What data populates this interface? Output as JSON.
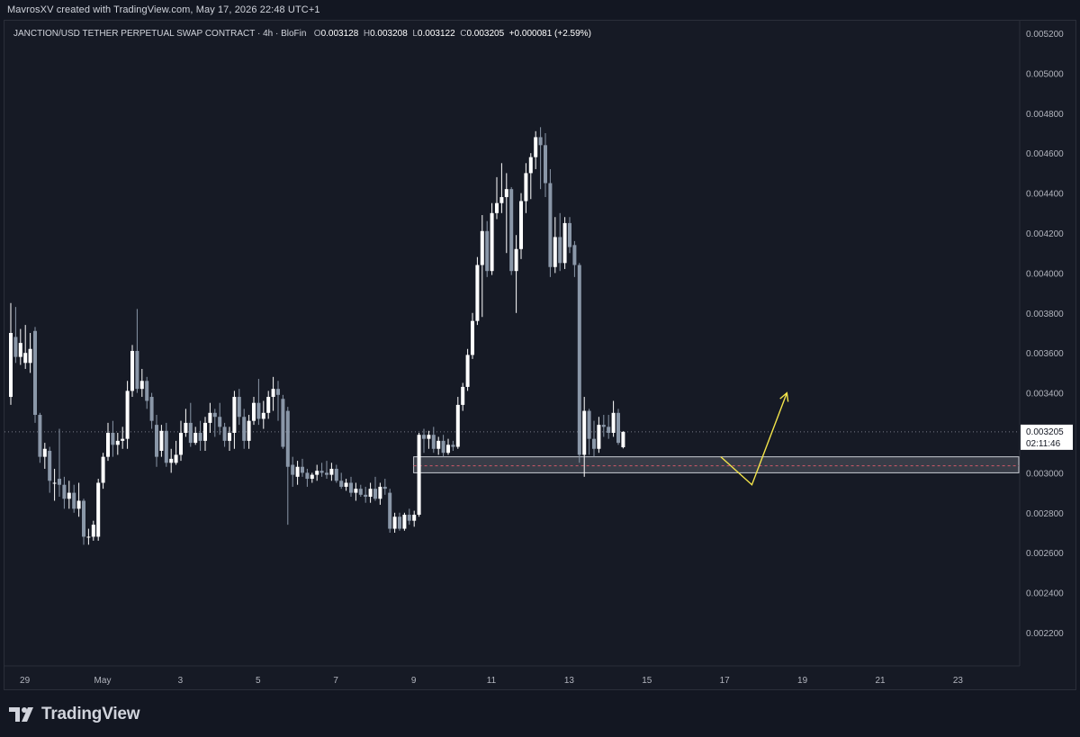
{
  "header": {
    "title": "MavrosXV created with TradingView.com, May 17, 2026 22:48 UTC+1"
  },
  "legend": {
    "symbol": "JANCTION/USD TETHER PERPETUAL SWAP CONTRACT · 4h · BloFin",
    "o_label": "O",
    "o_value": "0.003128",
    "h_label": "H",
    "h_value": "0.003208",
    "l_label": "L",
    "l_value": "0.003122",
    "c_label": "C",
    "c_value": "0.003205",
    "change": "+0.000081 (+2.59%)"
  },
  "footer": {
    "brand": "TradingView"
  },
  "colors": {
    "background": "#161a25",
    "up": "#ffffff",
    "down": "#8a97a8",
    "arrow": "#f3e44a",
    "zone": "#9598a1"
  },
  "chart_data": {
    "type": "candlestick",
    "timeframe": "4h",
    "x_tick_labels": [
      "29",
      "May",
      "3",
      "5",
      "7",
      "9",
      "11",
      "13",
      "15",
      "17",
      "19",
      "21",
      "23"
    ],
    "y_tick_labels": [
      "0.005200",
      "0.005000",
      "0.004800",
      "0.004600",
      "0.004400",
      "0.004200",
      "0.004000",
      "0.003800",
      "0.003600",
      "0.003400",
      "0.003200",
      "0.003000",
      "0.002800",
      "0.002600",
      "0.002400",
      "0.002200"
    ],
    "ylim": [
      0.00208,
      0.0053
    ],
    "last_price": {
      "value": "0.003205",
      "countdown": "02:11:46"
    },
    "zone": {
      "from": 0.003,
      "to": 0.00308,
      "mid": 0.003035,
      "start_day": 9.0
    },
    "candles": [
      {
        "o": 0.00338,
        "h": 0.00385,
        "l": 0.00334,
        "c": 0.0037
      },
      {
        "o": 0.00368,
        "h": 0.00383,
        "l": 0.00355,
        "c": 0.00358
      },
      {
        "o": 0.00358,
        "h": 0.00372,
        "l": 0.00354,
        "c": 0.00365
      },
      {
        "o": 0.00355,
        "h": 0.00374,
        "l": 0.00352,
        "c": 0.0036
      },
      {
        "o": 0.00355,
        "h": 0.0037,
        "l": 0.0035,
        "c": 0.00362
      },
      {
        "o": 0.00371,
        "h": 0.00373,
        "l": 0.00325,
        "c": 0.00329
      },
      {
        "o": 0.00329,
        "h": 0.0033,
        "l": 0.00305,
        "c": 0.00308
      },
      {
        "o": 0.00308,
        "h": 0.00315,
        "l": 0.00302,
        "c": 0.00312
      },
      {
        "o": 0.00311,
        "h": 0.00313,
        "l": 0.0029,
        "c": 0.00296
      },
      {
        "o": 0.00295,
        "h": 0.00302,
        "l": 0.00286,
        "c": 0.00295
      },
      {
        "o": 0.00297,
        "h": 0.00322,
        "l": 0.00288,
        "c": 0.00294
      },
      {
        "o": 0.00294,
        "h": 0.00298,
        "l": 0.00282,
        "c": 0.00287
      },
      {
        "o": 0.00287,
        "h": 0.00296,
        "l": 0.00282,
        "c": 0.0029
      },
      {
        "o": 0.0029,
        "h": 0.00294,
        "l": 0.0028,
        "c": 0.00282
      },
      {
        "o": 0.00282,
        "h": 0.00295,
        "l": 0.00278,
        "c": 0.00286
      },
      {
        "o": 0.00286,
        "h": 0.00287,
        "l": 0.00264,
        "c": 0.00268
      },
      {
        "o": 0.00268,
        "h": 0.00272,
        "l": 0.00264,
        "c": 0.00268
      },
      {
        "o": 0.00268,
        "h": 0.00276,
        "l": 0.00266,
        "c": 0.00274
      },
      {
        "o": 0.00268,
        "h": 0.00297,
        "l": 0.00266,
        "c": 0.00295
      },
      {
        "o": 0.00295,
        "h": 0.0031,
        "l": 0.00292,
        "c": 0.00308
      },
      {
        "o": 0.00308,
        "h": 0.00325,
        "l": 0.00306,
        "c": 0.0032
      },
      {
        "o": 0.0032,
        "h": 0.00326,
        "l": 0.00308,
        "c": 0.00314
      },
      {
        "o": 0.00314,
        "h": 0.0032,
        "l": 0.00309,
        "c": 0.00316
      },
      {
        "o": 0.00316,
        "h": 0.00323,
        "l": 0.00312,
        "c": 0.00317
      },
      {
        "o": 0.00317,
        "h": 0.00346,
        "l": 0.00312,
        "c": 0.00341
      },
      {
        "o": 0.00341,
        "h": 0.00364,
        "l": 0.00338,
        "c": 0.00361
      },
      {
        "o": 0.00361,
        "h": 0.00382,
        "l": 0.0034,
        "c": 0.00342
      },
      {
        "o": 0.00342,
        "h": 0.00352,
        "l": 0.00338,
        "c": 0.00346
      },
      {
        "o": 0.00346,
        "h": 0.00348,
        "l": 0.00332,
        "c": 0.00336
      },
      {
        "o": 0.00338,
        "h": 0.0034,
        "l": 0.00322,
        "c": 0.00326
      },
      {
        "o": 0.00324,
        "h": 0.00329,
        "l": 0.00303,
        "c": 0.00308
      },
      {
        "o": 0.00311,
        "h": 0.00324,
        "l": 0.00308,
        "c": 0.00321
      },
      {
        "o": 0.00321,
        "h": 0.00325,
        "l": 0.00303,
        "c": 0.00305
      },
      {
        "o": 0.00305,
        "h": 0.00312,
        "l": 0.003,
        "c": 0.00307
      },
      {
        "o": 0.00305,
        "h": 0.00316,
        "l": 0.00304,
        "c": 0.00309
      },
      {
        "o": 0.00309,
        "h": 0.00326,
        "l": 0.00306,
        "c": 0.0032
      },
      {
        "o": 0.0032,
        "h": 0.00332,
        "l": 0.00318,
        "c": 0.00325
      },
      {
        "o": 0.00325,
        "h": 0.00335,
        "l": 0.00313,
        "c": 0.00315
      },
      {
        "o": 0.00315,
        "h": 0.00323,
        "l": 0.00314,
        "c": 0.0032
      },
      {
        "o": 0.0032,
        "h": 0.00326,
        "l": 0.00311,
        "c": 0.00316
      },
      {
        "o": 0.00316,
        "h": 0.00328,
        "l": 0.00311,
        "c": 0.00325
      },
      {
        "o": 0.00325,
        "h": 0.00335,
        "l": 0.0032,
        "c": 0.0033
      },
      {
        "o": 0.0033,
        "h": 0.00332,
        "l": 0.00318,
        "c": 0.00328
      },
      {
        "o": 0.00328,
        "h": 0.00335,
        "l": 0.00319,
        "c": 0.00323
      },
      {
        "o": 0.00323,
        "h": 0.00325,
        "l": 0.00313,
        "c": 0.00316
      },
      {
        "o": 0.00316,
        "h": 0.00323,
        "l": 0.00311,
        "c": 0.0032
      },
      {
        "o": 0.0032,
        "h": 0.00341,
        "l": 0.00312,
        "c": 0.00338
      },
      {
        "o": 0.00338,
        "h": 0.00342,
        "l": 0.00324,
        "c": 0.00328
      },
      {
        "o": 0.00328,
        "h": 0.00332,
        "l": 0.00312,
        "c": 0.00316
      },
      {
        "o": 0.00316,
        "h": 0.00329,
        "l": 0.00312,
        "c": 0.00326
      },
      {
        "o": 0.00326,
        "h": 0.00338,
        "l": 0.00324,
        "c": 0.00335
      },
      {
        "o": 0.00335,
        "h": 0.00347,
        "l": 0.00324,
        "c": 0.00327
      },
      {
        "o": 0.00327,
        "h": 0.00336,
        "l": 0.00322,
        "c": 0.0033
      },
      {
        "o": 0.0033,
        "h": 0.00341,
        "l": 0.00327,
        "c": 0.00338
      },
      {
        "o": 0.00338,
        "h": 0.00348,
        "l": 0.00331,
        "c": 0.00342
      },
      {
        "o": 0.00342,
        "h": 0.00346,
        "l": 0.00326,
        "c": 0.00339
      },
      {
        "o": 0.00337,
        "h": 0.00339,
        "l": 0.00312,
        "c": 0.00313
      },
      {
        "o": 0.00331,
        "h": 0.00333,
        "l": 0.00274,
        "c": 0.00303
      },
      {
        "o": 0.00304,
        "h": 0.00308,
        "l": 0.00293,
        "c": 0.00299
      },
      {
        "o": 0.00298,
        "h": 0.00306,
        "l": 0.00294,
        "c": 0.00303
      },
      {
        "o": 0.00303,
        "h": 0.00307,
        "l": 0.00298,
        "c": 0.003
      },
      {
        "o": 0.003,
        "h": 0.00302,
        "l": 0.00293,
        "c": 0.00297
      },
      {
        "o": 0.00297,
        "h": 0.003,
        "l": 0.00295,
        "c": 0.00299
      },
      {
        "o": 0.00299,
        "h": 0.00304,
        "l": 0.00296,
        "c": 0.00301
      },
      {
        "o": 0.00301,
        "h": 0.00305,
        "l": 0.00298,
        "c": 0.003
      },
      {
        "o": 0.003,
        "h": 0.00306,
        "l": 0.00297,
        "c": 0.00299
      },
      {
        "o": 0.00299,
        "h": 0.00305,
        "l": 0.00296,
        "c": 0.00302
      },
      {
        "o": 0.00302,
        "h": 0.00304,
        "l": 0.00295,
        "c": 0.00296
      },
      {
        "o": 0.00296,
        "h": 0.003,
        "l": 0.00292,
        "c": 0.00293
      },
      {
        "o": 0.00293,
        "h": 0.00297,
        "l": 0.00291,
        "c": 0.00295
      },
      {
        "o": 0.00295,
        "h": 0.00298,
        "l": 0.00288,
        "c": 0.0029
      },
      {
        "o": 0.0029,
        "h": 0.00295,
        "l": 0.00286,
        "c": 0.00292
      },
      {
        "o": 0.00292,
        "h": 0.00294,
        "l": 0.00288,
        "c": 0.00289
      },
      {
        "o": 0.00289,
        "h": 0.00293,
        "l": 0.00285,
        "c": 0.00288
      },
      {
        "o": 0.00288,
        "h": 0.00295,
        "l": 0.00285,
        "c": 0.00292
      },
      {
        "o": 0.00292,
        "h": 0.00298,
        "l": 0.00286,
        "c": 0.00287
      },
      {
        "o": 0.00287,
        "h": 0.00295,
        "l": 0.00284,
        "c": 0.00293
      },
      {
        "o": 0.00293,
        "h": 0.00297,
        "l": 0.00289,
        "c": 0.00292
      },
      {
        "o": 0.0029,
        "h": 0.00292,
        "l": 0.0027,
        "c": 0.00272
      },
      {
        "o": 0.00272,
        "h": 0.0028,
        "l": 0.0027,
        "c": 0.00278
      },
      {
        "o": 0.00278,
        "h": 0.0028,
        "l": 0.00271,
        "c": 0.00272
      },
      {
        "o": 0.00272,
        "h": 0.0028,
        "l": 0.00271,
        "c": 0.00279
      },
      {
        "o": 0.00279,
        "h": 0.00282,
        "l": 0.00274,
        "c": 0.00276
      },
      {
        "o": 0.00276,
        "h": 0.00281,
        "l": 0.00273,
        "c": 0.00279
      },
      {
        "o": 0.00279,
        "h": 0.0032,
        "l": 0.00278,
        "c": 0.00319
      },
      {
        "o": 0.00319,
        "h": 0.00322,
        "l": 0.0031,
        "c": 0.00317
      },
      {
        "o": 0.00317,
        "h": 0.00321,
        "l": 0.00312,
        "c": 0.00319
      },
      {
        "o": 0.00319,
        "h": 0.00323,
        "l": 0.0031,
        "c": 0.00312
      },
      {
        "o": 0.00312,
        "h": 0.00318,
        "l": 0.00309,
        "c": 0.00316
      },
      {
        "o": 0.00316,
        "h": 0.00319,
        "l": 0.00308,
        "c": 0.0031
      },
      {
        "o": 0.0031,
        "h": 0.00317,
        "l": 0.00309,
        "c": 0.00314
      },
      {
        "o": 0.00314,
        "h": 0.00316,
        "l": 0.00311,
        "c": 0.00313
      },
      {
        "o": 0.00313,
        "h": 0.00338,
        "l": 0.00312,
        "c": 0.00334
      },
      {
        "o": 0.00334,
        "h": 0.00345,
        "l": 0.00331,
        "c": 0.00343
      },
      {
        "o": 0.00343,
        "h": 0.00362,
        "l": 0.00341,
        "c": 0.00359
      },
      {
        "o": 0.00359,
        "h": 0.0038,
        "l": 0.00357,
        "c": 0.00376
      },
      {
        "o": 0.00376,
        "h": 0.00408,
        "l": 0.00374,
        "c": 0.00404
      },
      {
        "o": 0.00404,
        "h": 0.00429,
        "l": 0.00378,
        "c": 0.00421
      },
      {
        "o": 0.00421,
        "h": 0.00426,
        "l": 0.00398,
        "c": 0.00401
      },
      {
        "o": 0.00401,
        "h": 0.00435,
        "l": 0.00399,
        "c": 0.0043
      },
      {
        "o": 0.0043,
        "h": 0.00448,
        "l": 0.00427,
        "c": 0.00435
      },
      {
        "o": 0.00435,
        "h": 0.00455,
        "l": 0.0043,
        "c": 0.00438
      },
      {
        "o": 0.00438,
        "h": 0.0045,
        "l": 0.0041,
        "c": 0.00442
      },
      {
        "o": 0.00442,
        "h": 0.00443,
        "l": 0.00399,
        "c": 0.00401
      },
      {
        "o": 0.00401,
        "h": 0.00419,
        "l": 0.0038,
        "c": 0.00412
      },
      {
        "o": 0.00412,
        "h": 0.0044,
        "l": 0.00407,
        "c": 0.00436
      },
      {
        "o": 0.00436,
        "h": 0.00455,
        "l": 0.0043,
        "c": 0.0045
      },
      {
        "o": 0.0045,
        "h": 0.0046,
        "l": 0.00437,
        "c": 0.00458
      },
      {
        "o": 0.00458,
        "h": 0.00471,
        "l": 0.00452,
        "c": 0.00468
      },
      {
        "o": 0.00468,
        "h": 0.00473,
        "l": 0.00442,
        "c": 0.00464
      },
      {
        "o": 0.00464,
        "h": 0.0047,
        "l": 0.00438,
        "c": 0.00445
      },
      {
        "o": 0.00445,
        "h": 0.00452,
        "l": 0.00398,
        "c": 0.00403
      },
      {
        "o": 0.00403,
        "h": 0.00428,
        "l": 0.004,
        "c": 0.00418
      },
      {
        "o": 0.00418,
        "h": 0.0043,
        "l": 0.00401,
        "c": 0.00405
      },
      {
        "o": 0.00405,
        "h": 0.00428,
        "l": 0.00402,
        "c": 0.00425
      },
      {
        "o": 0.00425,
        "h": 0.00428,
        "l": 0.0041,
        "c": 0.00413
      },
      {
        "o": 0.00414,
        "h": 0.00416,
        "l": 0.00398,
        "c": 0.00404
      },
      {
        "o": 0.00404,
        "h": 0.00405,
        "l": 0.00305,
        "c": 0.00309
      },
      {
        "o": 0.00309,
        "h": 0.00338,
        "l": 0.00298,
        "c": 0.00331
      },
      {
        "o": 0.00331,
        "h": 0.00332,
        "l": 0.00309,
        "c": 0.00317
      },
      {
        "o": 0.00317,
        "h": 0.00326,
        "l": 0.00308,
        "c": 0.00312
      },
      {
        "o": 0.00312,
        "h": 0.00328,
        "l": 0.0031,
        "c": 0.00324
      },
      {
        "o": 0.00324,
        "h": 0.00329,
        "l": 0.00318,
        "c": 0.00323
      },
      {
        "o": 0.00323,
        "h": 0.00329,
        "l": 0.00317,
        "c": 0.0032
      },
      {
        "o": 0.0032,
        "h": 0.00336,
        "l": 0.00318,
        "c": 0.0033
      },
      {
        "o": 0.0033,
        "h": 0.00332,
        "l": 0.00314,
        "c": 0.00315
      },
      {
        "o": 0.003128,
        "h": 0.003208,
        "l": 0.003122,
        "c": 0.003205
      }
    ],
    "arrow_path": [
      {
        "day": 16.9,
        "price": 0.00308
      },
      {
        "day": 17.7,
        "price": 0.00294
      },
      {
        "day": 18.6,
        "price": 0.0034
      }
    ]
  }
}
